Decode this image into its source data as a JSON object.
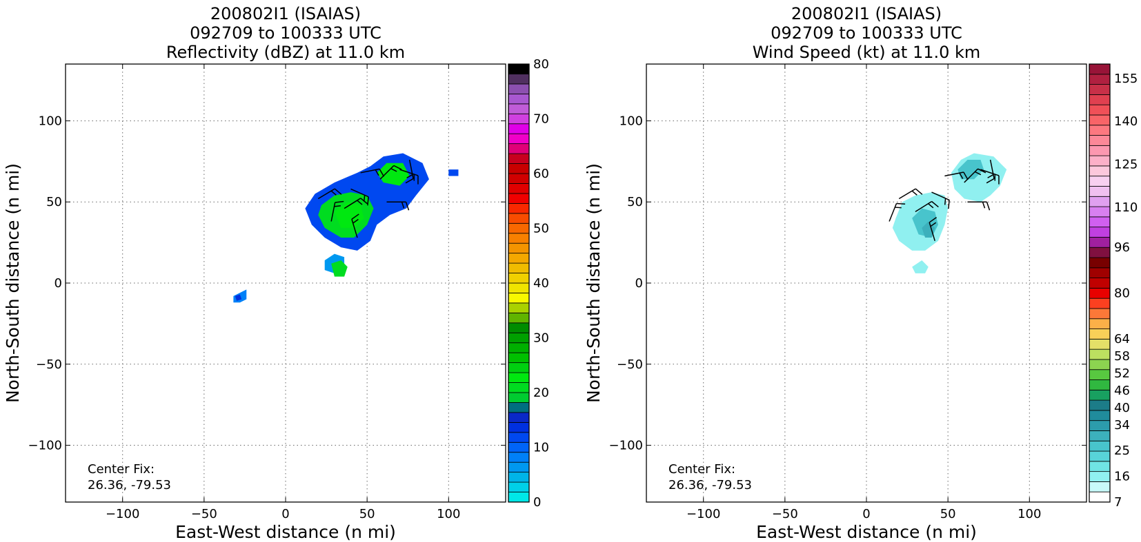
{
  "chart_data": [
    {
      "type": "heatmap",
      "title_lines": [
        "200802I1 (ISAIAS)",
        "092709 to 100333 UTC",
        "Reflectivity (dBZ) at 11.0 km"
      ],
      "xlabel": "East-West distance (n mi)",
      "ylabel": "North-South distance (n mi)",
      "xlim": [
        -135,
        135
      ],
      "ylim": [
        -135,
        135
      ],
      "xticks": [
        -100,
        -50,
        0,
        50,
        100
      ],
      "yticks": [
        -100,
        -50,
        0,
        50,
        100
      ],
      "xtick_labels": [
        "−100",
        "−50",
        "0",
        "50",
        "100"
      ],
      "ytick_labels": [
        "−100",
        "−50",
        "0",
        "50",
        "100"
      ],
      "grid": true,
      "center_fix_label": "Center Fix:",
      "center_fix_value": "26.36, -79.53",
      "colorbar": {
        "min": 0,
        "max": 80,
        "ticks": [
          0,
          10,
          20,
          30,
          40,
          50,
          60,
          70,
          80
        ],
        "tick_labels": [
          "0",
          "10",
          "20",
          "30",
          "40",
          "50",
          "60",
          "70",
          "80"
        ],
        "colors": [
          "#00e8e8",
          "#00d0e8",
          "#00b4e8",
          "#0098f0",
          "#0080f8",
          "#0064f8",
          "#0048f0",
          "#0030e0",
          "#0a28c8",
          "#006e80",
          "#00cc30",
          "#00dc20",
          "#00e810",
          "#00d010",
          "#00c000",
          "#00b000",
          "#00a000",
          "#008c00",
          "#60b400",
          "#aad200",
          "#f8f800",
          "#f0e400",
          "#f0d000",
          "#f0bc00",
          "#f4a800",
          "#f49400",
          "#f88000",
          "#f86800",
          "#f84c00",
          "#f82800",
          "#f00000",
          "#e00000",
          "#d00000",
          "#c80000",
          "#c8001e",
          "#e00078",
          "#f000c8",
          "#e000e8",
          "#d040e0",
          "#c05cd8",
          "#a858d0",
          "#8c50b0",
          "#503060",
          "#000000"
        ]
      },
      "echo_regions": [
        {
          "points": [
            [
              18,
              55
            ],
            [
              30,
              62
            ],
            [
              44,
              68
            ],
            [
              52,
              72
            ],
            [
              60,
              78
            ],
            [
              72,
              80
            ],
            [
              84,
              74
            ],
            [
              88,
              64
            ],
            [
              80,
              54
            ],
            [
              74,
              46
            ],
            [
              64,
              42
            ],
            [
              56,
              36
            ],
            [
              52,
              26
            ],
            [
              44,
              20
            ],
            [
              34,
              22
            ],
            [
              24,
              28
            ],
            [
              16,
              36
            ],
            [
              12,
              46
            ]
          ],
          "value": 12
        },
        {
          "points": [
            [
              22,
              48
            ],
            [
              30,
              54
            ],
            [
              40,
              56
            ],
            [
              50,
              54
            ],
            [
              54,
              46
            ],
            [
              50,
              36
            ],
            [
              42,
              28
            ],
            [
              34,
              28
            ],
            [
              24,
              34
            ],
            [
              20,
              42
            ]
          ],
          "value": 20
        },
        {
          "points": [
            [
              30,
              44
            ],
            [
              38,
              50
            ],
            [
              46,
              48
            ],
            [
              48,
              40
            ],
            [
              42,
              34
            ],
            [
              34,
              34
            ]
          ],
          "value": 23
        },
        {
          "points": [
            [
              56,
              68
            ],
            [
              62,
              74
            ],
            [
              72,
              74
            ],
            [
              76,
              66
            ],
            [
              70,
              60
            ],
            [
              60,
              62
            ]
          ],
          "value": 22
        },
        {
          "points": [
            [
              24,
              14
            ],
            [
              30,
              18
            ],
            [
              36,
              16
            ],
            [
              36,
              8
            ],
            [
              30,
              6
            ],
            [
              24,
              8
            ]
          ],
          "value": 7
        },
        {
          "points": [
            [
              28,
              12
            ],
            [
              34,
              14
            ],
            [
              38,
              10
            ],
            [
              36,
              4
            ],
            [
              30,
              4
            ]
          ],
          "value": 21
        },
        {
          "points": [
            [
              -32,
              -8
            ],
            [
              -28,
              -6
            ],
            [
              -24,
              -4
            ],
            [
              -24,
              -10
            ],
            [
              -28,
              -12
            ],
            [
              -32,
              -12
            ]
          ],
          "value": 8
        },
        {
          "points": [
            [
              -31,
              -8
            ],
            [
              -28,
              -7
            ],
            [
              -27,
              -10
            ],
            [
              -30,
              -11
            ]
          ],
          "value": 14
        },
        {
          "points": [
            [
              100,
              70
            ],
            [
              106,
              70
            ],
            [
              106,
              66
            ],
            [
              100,
              66
            ]
          ],
          "value": 11
        }
      ],
      "wind_barbs": [
        {
          "x": 20,
          "y": 52,
          "u": 1,
          "v": 0.6
        },
        {
          "x": 28,
          "y": 38,
          "u": 0.2,
          "v": 1
        },
        {
          "x": 36,
          "y": 46,
          "u": 0.8,
          "v": 0.5
        },
        {
          "x": 44,
          "y": 28,
          "u": -0.3,
          "v": 1
        },
        {
          "x": 40,
          "y": 58,
          "u": 0.9,
          "v": -0.4
        },
        {
          "x": 46,
          "y": 68,
          "u": 1,
          "v": 0.2
        },
        {
          "x": 58,
          "y": 64,
          "u": 0.7,
          "v": 0.7
        },
        {
          "x": 70,
          "y": 70,
          "u": 0.9,
          "v": -0.3
        },
        {
          "x": 62,
          "y": 50,
          "u": 1,
          "v": 0
        },
        {
          "x": 76,
          "y": 76,
          "u": 0.2,
          "v": -1
        }
      ]
    },
    {
      "type": "heatmap",
      "title_lines": [
        "200802I1 (ISAIAS)",
        "092709 to 100333 UTC",
        "Wind Speed (kt) at 11.0 km"
      ],
      "xlabel": "East-West distance (n mi)",
      "ylabel": "North-South distance (n mi)",
      "xlim": [
        -135,
        135
      ],
      "ylim": [
        -135,
        135
      ],
      "xticks": [
        -100,
        -50,
        0,
        50,
        100
      ],
      "yticks": [
        -100,
        -50,
        0,
        50,
        100
      ],
      "xtick_labels": [
        "−100",
        "−50",
        "0",
        "50",
        "100"
      ],
      "ytick_labels": [
        "−100",
        "−50",
        "0",
        "50",
        "100"
      ],
      "grid": true,
      "center_fix_label": "Center Fix:",
      "center_fix_value": "26.36, -79.53",
      "colorbar": {
        "min": 7,
        "max": 160,
        "ticks": [
          7,
          16,
          25,
          34,
          40,
          46,
          52,
          58,
          64,
          80,
          96,
          110,
          125,
          140,
          155
        ],
        "tick_labels": [
          "7",
          "16",
          "25",
          "34",
          "40",
          "46",
          "52",
          "58",
          "64",
          "80",
          "96",
          "110",
          "125",
          "140",
          "155"
        ],
        "colors": [
          "#ffffff",
          "#c8fafa",
          "#90f0f0",
          "#70e4e4",
          "#58d4d8",
          "#48c4cc",
          "#3cb0bc",
          "#2c9cac",
          "#208c9c",
          "#1c7c88",
          "#18a060",
          "#30b840",
          "#58c840",
          "#8cd450",
          "#bce060",
          "#e4e068",
          "#f8d058",
          "#fcb048",
          "#fc7838",
          "#fc4020",
          "#e80000",
          "#c00000",
          "#a00000",
          "#780000",
          "#801040",
          "#a020a0",
          "#c040e0",
          "#d060f0",
          "#d880f0",
          "#e0a0f0",
          "#f0c0f0",
          "#f8d0f0",
          "#fcc8dc",
          "#fcb0c8",
          "#fc98b0",
          "#fc8898",
          "#fc7880",
          "#f86468",
          "#f05058",
          "#e04050",
          "#c83048",
          "#b02040",
          "#981438"
        ]
      },
      "echo_regions": [
        {
          "points": [
            [
              18,
              40
            ],
            [
              22,
              50
            ],
            [
              30,
              54
            ],
            [
              40,
              56
            ],
            [
              48,
              54
            ],
            [
              50,
              46
            ],
            [
              48,
              36
            ],
            [
              44,
              26
            ],
            [
              36,
              20
            ],
            [
              28,
              20
            ],
            [
              20,
              26
            ],
            [
              16,
              34
            ]
          ],
          "value": 16
        },
        {
          "points": [
            [
              28,
              40
            ],
            [
              34,
              46
            ],
            [
              42,
              44
            ],
            [
              44,
              36
            ],
            [
              40,
              28
            ],
            [
              32,
              30
            ]
          ],
          "value": 25
        },
        {
          "points": [
            [
              34,
              34
            ],
            [
              38,
              38
            ],
            [
              42,
              34
            ],
            [
              40,
              28
            ],
            [
              36,
              28
            ]
          ],
          "value": 31
        },
        {
          "points": [
            [
              52,
              68
            ],
            [
              58,
              76
            ],
            [
              66,
              80
            ],
            [
              78,
              78
            ],
            [
              86,
              70
            ],
            [
              82,
              60
            ],
            [
              76,
              54
            ],
            [
              70,
              50
            ],
            [
              60,
              52
            ],
            [
              54,
              58
            ]
          ],
          "value": 16
        },
        {
          "points": [
            [
              56,
              70
            ],
            [
              62,
              76
            ],
            [
              70,
              76
            ],
            [
              72,
              70
            ],
            [
              66,
              64
            ],
            [
              58,
              64
            ]
          ],
          "value": 26
        },
        {
          "points": [
            [
              28,
              10
            ],
            [
              34,
              14
            ],
            [
              38,
              10
            ],
            [
              36,
              6
            ],
            [
              30,
              6
            ]
          ],
          "value": 16
        }
      ],
      "wind_barbs": [
        {
          "x": 20,
          "y": 52,
          "u": 1,
          "v": 0.6
        },
        {
          "x": 14,
          "y": 38,
          "u": 0.4,
          "v": 1
        },
        {
          "x": 30,
          "y": 44,
          "u": 0.8,
          "v": 0.5
        },
        {
          "x": 42,
          "y": 26,
          "u": -0.3,
          "v": 1
        },
        {
          "x": 40,
          "y": 56,
          "u": 0.9,
          "v": -0.4
        },
        {
          "x": 48,
          "y": 66,
          "u": 1,
          "v": 0.2
        },
        {
          "x": 60,
          "y": 62,
          "u": 0.7,
          "v": 0.7
        },
        {
          "x": 70,
          "y": 70,
          "u": 0.9,
          "v": -0.3
        },
        {
          "x": 62,
          "y": 50,
          "u": 1,
          "v": 0
        },
        {
          "x": 76,
          "y": 76,
          "u": 0.2,
          "v": -1
        }
      ]
    }
  ]
}
